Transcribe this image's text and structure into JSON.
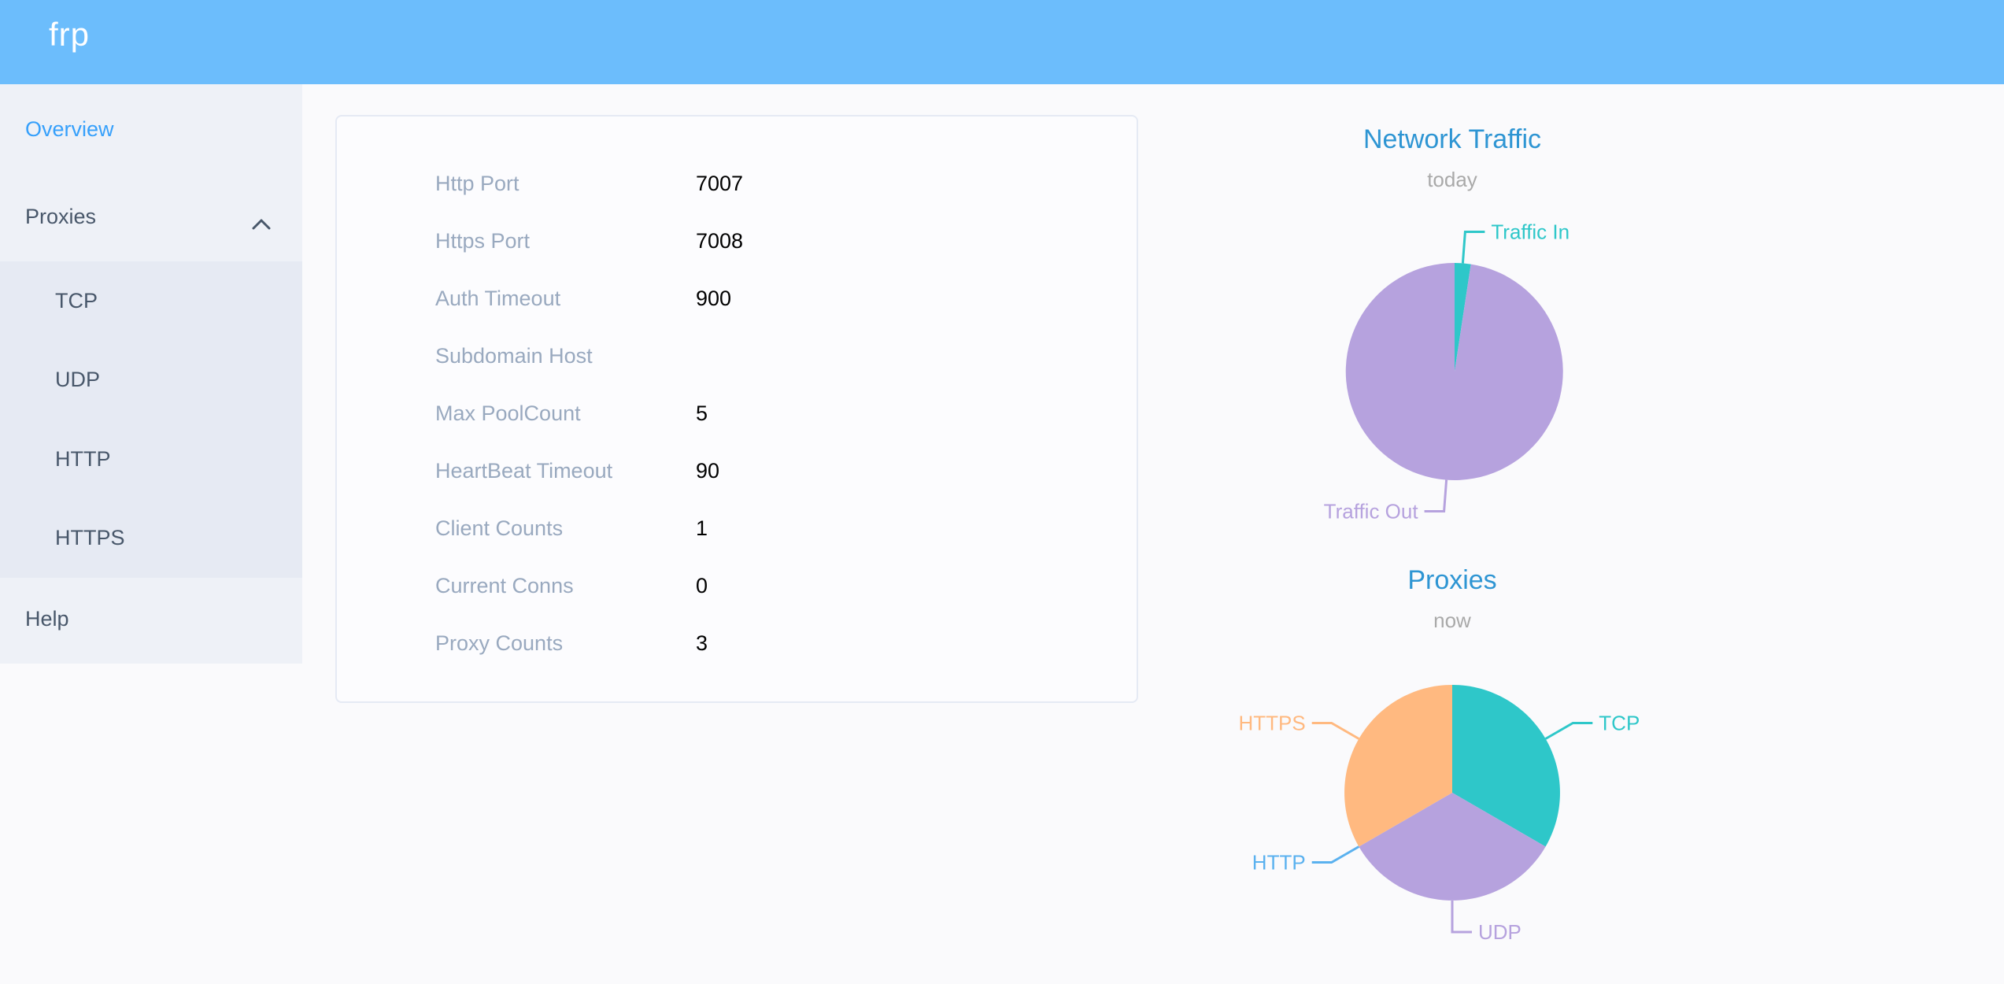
{
  "header": {
    "logo": "frp"
  },
  "sidebar": {
    "items": [
      {
        "label": "Overview",
        "active": true
      },
      {
        "label": "Proxies",
        "expanded": true,
        "children": [
          "TCP",
          "UDP",
          "HTTP",
          "HTTPS"
        ]
      },
      {
        "label": "Help"
      }
    ]
  },
  "overview_card": {
    "rows": [
      {
        "label": "Http Port",
        "value": "7007"
      },
      {
        "label": "Https Port",
        "value": "7008"
      },
      {
        "label": "Auth Timeout",
        "value": "900"
      },
      {
        "label": "Subdomain Host",
        "value": ""
      },
      {
        "label": "Max PoolCount",
        "value": "5"
      },
      {
        "label": "HeartBeat Timeout",
        "value": "90"
      },
      {
        "label": "Client Counts",
        "value": "1"
      },
      {
        "label": "Current Conns",
        "value": "0"
      },
      {
        "label": "Proxy Counts",
        "value": "3"
      }
    ]
  },
  "chart_data": [
    {
      "type": "pie",
      "title": "Network Traffic",
      "subtitle": "today",
      "values_are": "percent-of-total, estimated from slice angles",
      "legend_position": "callout-labels",
      "series": [
        {
          "name": "Traffic In",
          "value": 2.4,
          "color": "#2ec7c9"
        },
        {
          "name": "Traffic Out",
          "value": 97.6,
          "color": "#b6a2de"
        }
      ]
    },
    {
      "type": "pie",
      "title": "Proxies",
      "subtitle": "now",
      "values_are": "proxy counts",
      "legend_position": "callout-labels",
      "series": [
        {
          "name": "TCP",
          "value": 1,
          "color": "#2ec7c9"
        },
        {
          "name": "UDP",
          "value": 1,
          "color": "#b6a2de"
        },
        {
          "name": "HTTP",
          "value": 0,
          "color": "#5ab1ef"
        },
        {
          "name": "HTTPS",
          "value": 1,
          "color": "#ffb980"
        }
      ]
    }
  ],
  "colors": {
    "header_background": "#6cbdfc",
    "menu_active": "#36a0fb",
    "menu_text": "#48576a",
    "chart_title": "#2e95d3",
    "card_label": "#99a9bf",
    "palette_teal": "#2ec7c9",
    "palette_purple": "#b6a2de",
    "palette_blue": "#5ab1ef",
    "palette_orange": "#ffb980"
  }
}
